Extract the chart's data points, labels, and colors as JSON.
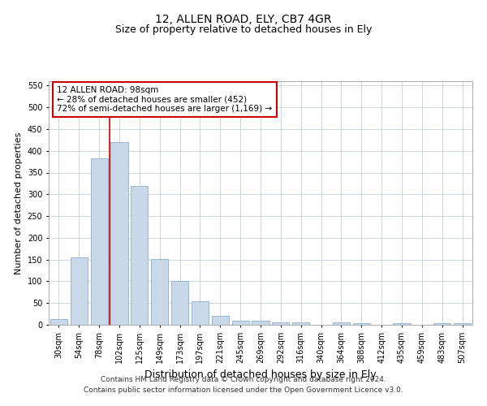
{
  "title": "12, ALLEN ROAD, ELY, CB7 4GR",
  "subtitle": "Size of property relative to detached houses in Ely",
  "xlabel": "Distribution of detached houses by size in Ely",
  "ylabel": "Number of detached properties",
  "categories": [
    "30sqm",
    "54sqm",
    "78sqm",
    "102sqm",
    "125sqm",
    "149sqm",
    "173sqm",
    "197sqm",
    "221sqm",
    "245sqm",
    "269sqm",
    "292sqm",
    "316sqm",
    "340sqm",
    "364sqm",
    "388sqm",
    "412sqm",
    "435sqm",
    "459sqm",
    "483sqm",
    "507sqm"
  ],
  "values": [
    13,
    155,
    383,
    420,
    320,
    152,
    100,
    55,
    20,
    10,
    10,
    5,
    5,
    0,
    5,
    3,
    0,
    3,
    0,
    3,
    3
  ],
  "bar_color": "#c8d8e8",
  "bar_edgecolor": "#8ab0d0",
  "vline_x_index": 3,
  "vline_color": "#cc0000",
  "annotation_text": "12 ALLEN ROAD: 98sqm\n← 28% of detached houses are smaller (452)\n72% of semi-detached houses are larger (1,169) →",
  "annotation_box_color": "#ffffff",
  "annotation_box_edgecolor": "#cc0000",
  "ylim": [
    0,
    560
  ],
  "yticks": [
    0,
    50,
    100,
    150,
    200,
    250,
    300,
    350,
    400,
    450,
    500,
    550
  ],
  "footer1": "Contains HM Land Registry data © Crown copyright and database right 2024.",
  "footer2": "Contains public sector information licensed under the Open Government Licence v3.0.",
  "title_fontsize": 10,
  "subtitle_fontsize": 9,
  "xlabel_fontsize": 9,
  "ylabel_fontsize": 8,
  "tick_fontsize": 7,
  "annotation_fontsize": 7.5,
  "footer_fontsize": 6.5,
  "background_color": "#ffffff",
  "grid_color": "#c8d0d8"
}
